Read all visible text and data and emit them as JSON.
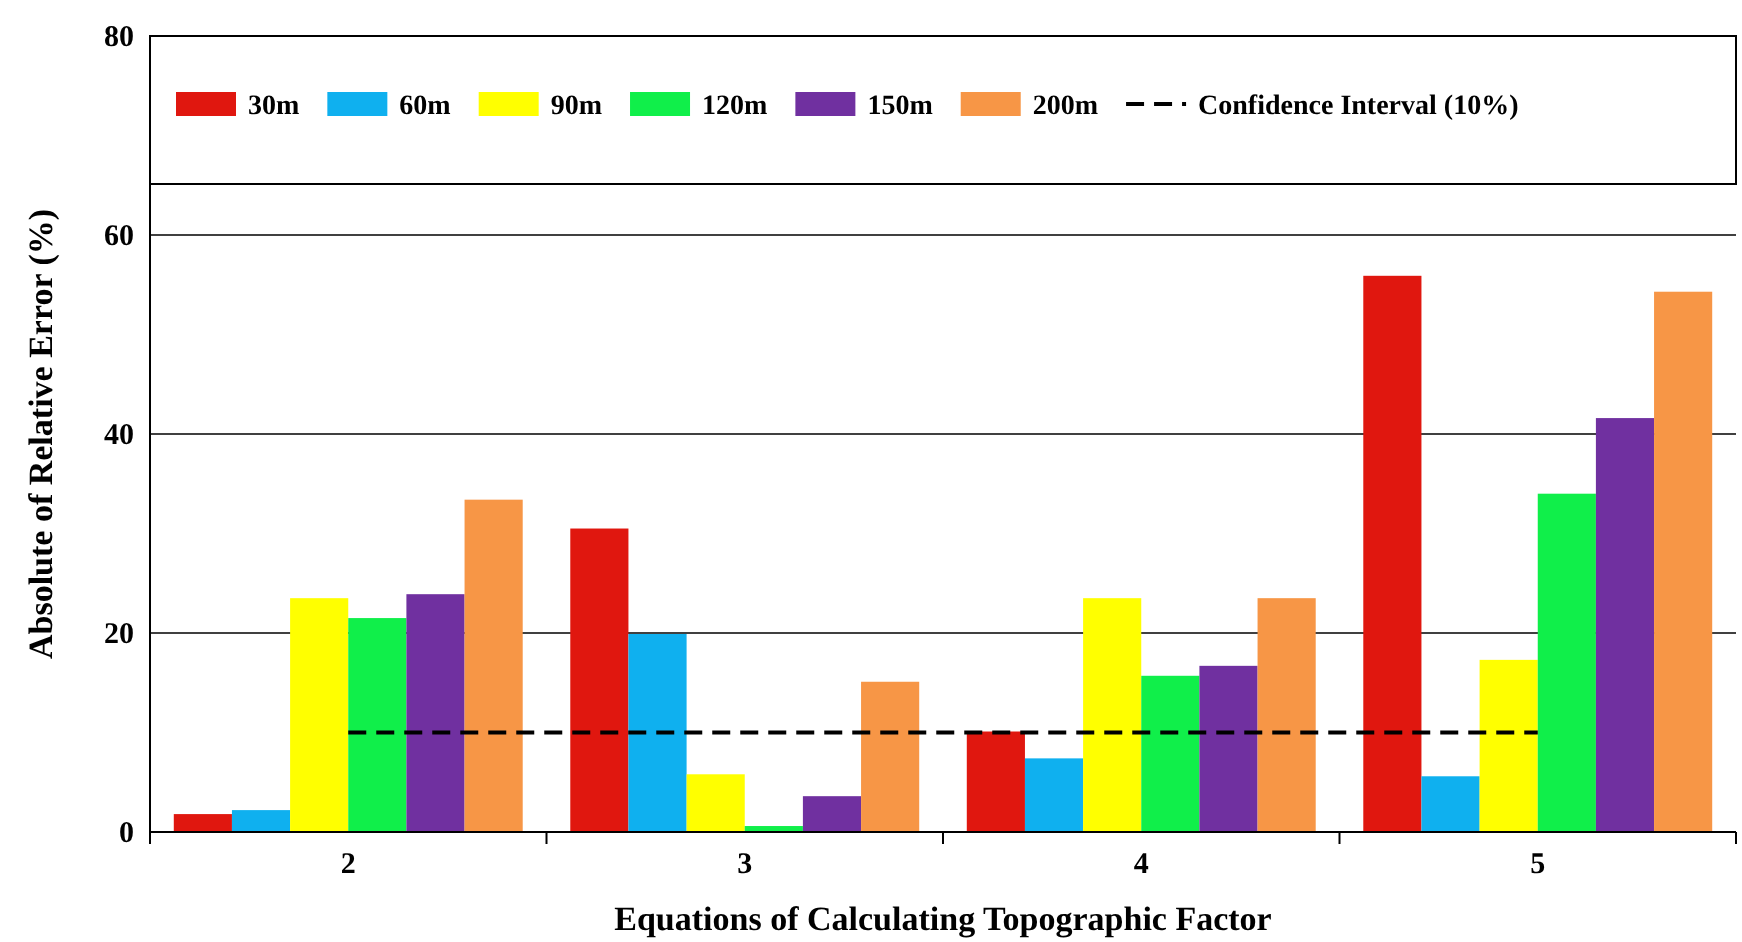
{
  "chart_data": {
    "type": "bar",
    "xlabel": "Equations of Calculating Topographic Factor",
    "ylabel": "Absolute of Relative Error (%)",
    "categories": [
      "2",
      "3",
      "4",
      "5"
    ],
    "series": [
      {
        "name": "30m",
        "color": "#e0170f",
        "values": [
          1.8,
          30.5,
          10.1,
          55.9
        ]
      },
      {
        "name": "60m",
        "color": "#0fb0ef",
        "values": [
          2.2,
          19.9,
          7.4,
          5.6
        ]
      },
      {
        "name": "90m",
        "color": "#ffff00",
        "values": [
          23.5,
          5.8,
          23.5,
          17.3
        ]
      },
      {
        "name": "120m",
        "color": "#10ef4a",
        "values": [
          21.5,
          0.6,
          15.7,
          34
        ]
      },
      {
        "name": "150m",
        "color": "#7030a0",
        "values": [
          23.9,
          3.6,
          16.7,
          41.6
        ]
      },
      {
        "name": "200m",
        "color": "#f79646",
        "values": [
          33.4,
          15.1,
          23.5,
          54.3
        ]
      },
      {
        "name": "Confidence Interval (10%)",
        "type": "line",
        "color": "#000000",
        "line_style": "dashed",
        "values": [
          10,
          10,
          10,
          10
        ]
      }
    ],
    "ylim": [
      0,
      80
    ],
    "yticks": [
      0,
      20,
      40,
      60,
      80
    ],
    "grid": "y",
    "legend": "top"
  }
}
